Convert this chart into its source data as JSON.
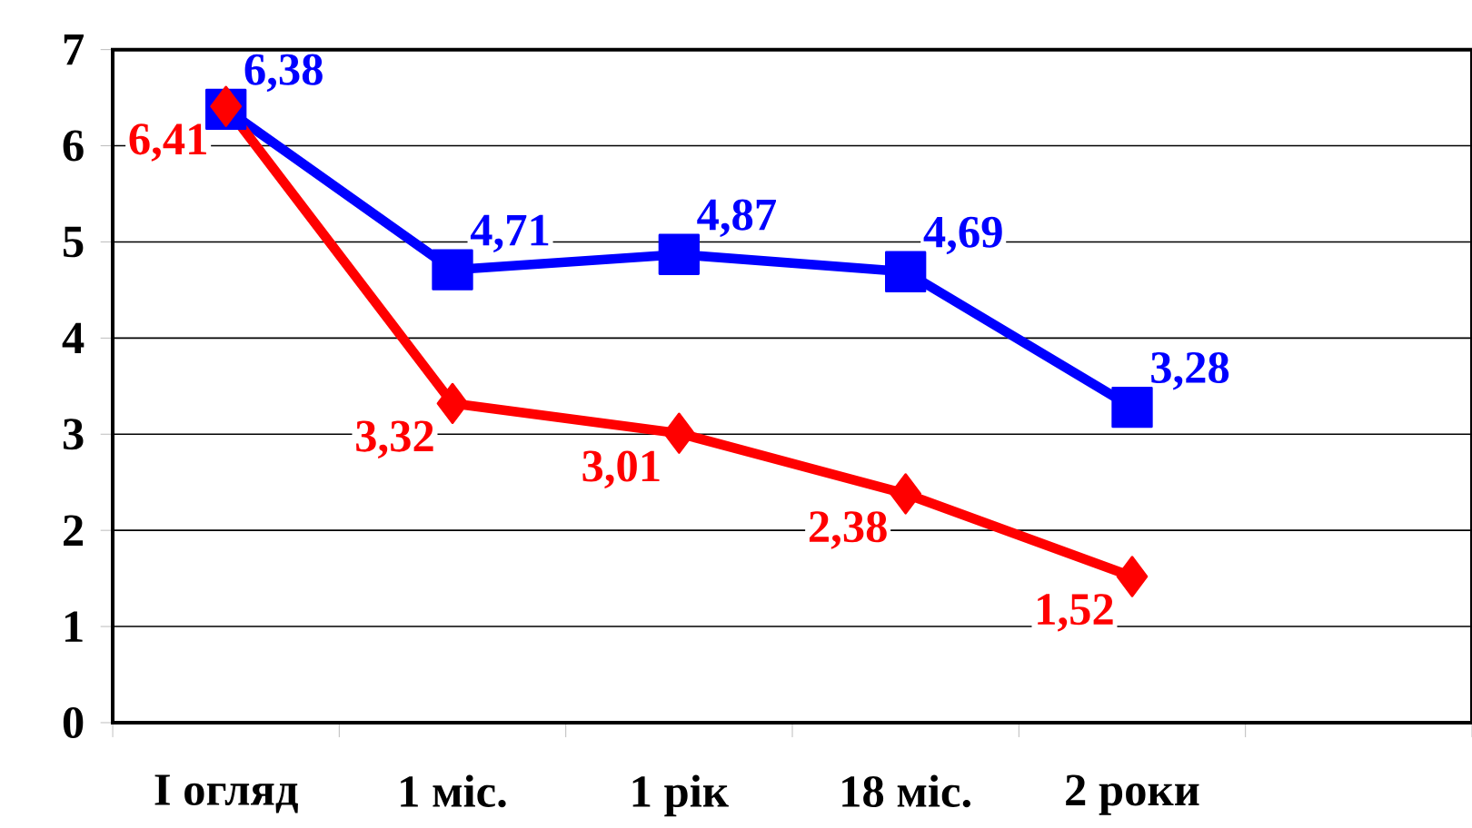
{
  "chart_data": {
    "type": "line",
    "categories": [
      "I огляд",
      "1 міс.",
      "1 рік",
      "18 міс.",
      "2 роки",
      null
    ],
    "series": [
      {
        "color": "#0000ff",
        "marker": "square",
        "values": [
          6.38,
          4.71,
          4.87,
          4.69,
          3.28,
          null
        ],
        "value_labels": [
          "6,38",
          "4,71",
          "4,87",
          "4,69",
          "3,28",
          null
        ]
      },
      {
        "color": "#ff0000",
        "marker": "diamond",
        "values": [
          6.41,
          3.32,
          3.01,
          2.38,
          1.52,
          null
        ],
        "value_labels": [
          "6,41",
          "3,32",
          "3,01",
          "2,38",
          "1,52",
          null
        ]
      }
    ],
    "ylim": [
      0,
      7
    ],
    "yticks": [
      0,
      1,
      2,
      3,
      4,
      5,
      6,
      7
    ],
    "grid": "y",
    "line_style": "solid"
  }
}
